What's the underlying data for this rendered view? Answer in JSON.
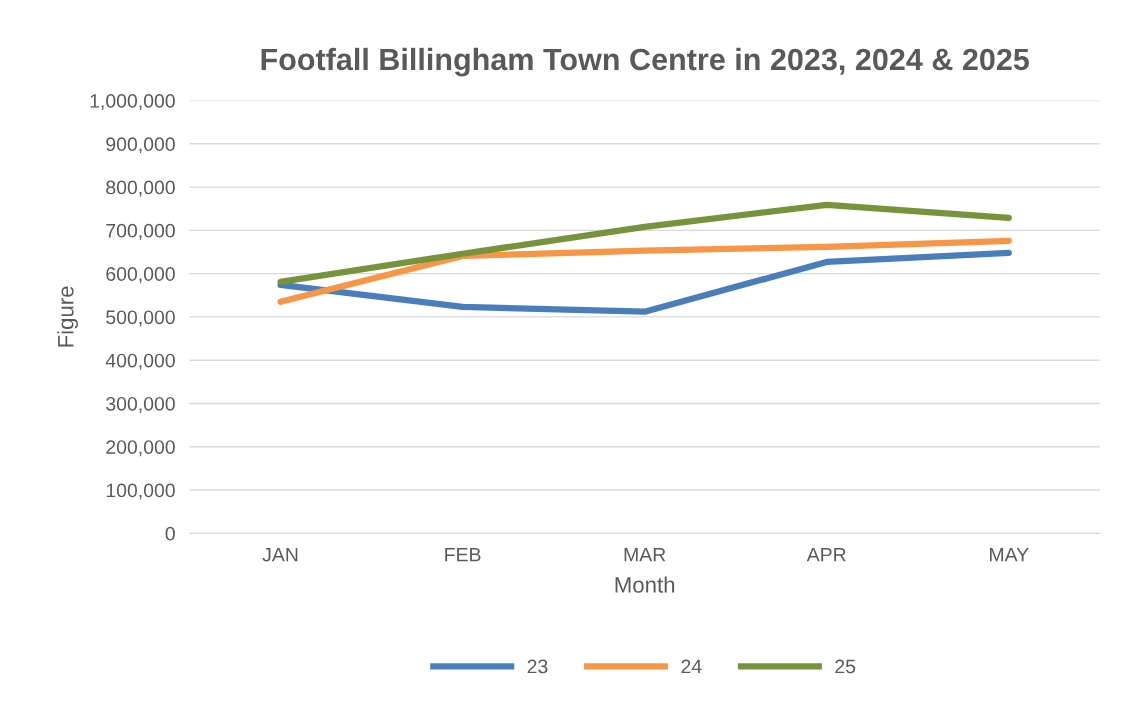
{
  "chart_data": {
    "type": "line",
    "title": "Footfall Billingham Town Centre in 2023, 2024 & 2025",
    "xlabel": "Month",
    "ylabel": "Figure",
    "categories": [
      "JAN",
      "FEB",
      "MAR",
      "APR",
      "MAY"
    ],
    "series": [
      {
        "name": "23",
        "color": "#4a7ebb",
        "values": [
          574000,
          523000,
          512000,
          627000,
          648000
        ]
      },
      {
        "name": "24",
        "color": "#f79646",
        "values": [
          535000,
          641000,
          653000,
          662000,
          676000
        ]
      },
      {
        "name": "25",
        "color": "#77933c",
        "values": [
          581000,
          646000,
          708000,
          759000,
          729000
        ]
      }
    ],
    "ylim": [
      0,
      1000000
    ],
    "yticks": [
      0,
      {
        "value": 100000,
        "label": "100,000"
      },
      {
        "value": 200000,
        "label": "200,000"
      },
      {
        "value": 300000,
        "label": "300,000"
      },
      {
        "value": 400000,
        "label": "400,000"
      },
      {
        "value": 500000,
        "label": "500,000"
      },
      {
        "value": 600000,
        "label": "600,000"
      },
      {
        "value": 700000,
        "label": "700,000"
      },
      {
        "value": 800000,
        "label": "800,000"
      },
      {
        "value": 900000,
        "label": "900,000"
      },
      {
        "value": 1000000,
        "label": "1,000,000"
      }
    ],
    "grid": "y",
    "legend": "bottom",
    "marker": "none",
    "line_style": "solid"
  }
}
